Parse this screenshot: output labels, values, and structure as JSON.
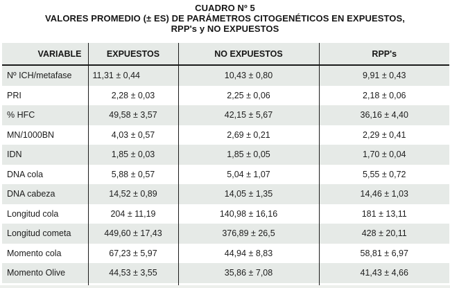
{
  "title": {
    "line1": "CUADRO Nº 5",
    "line2": "VALORES PROMEDIO (± ES) DE PARÁMETROS CITOGENÉTICOS EN EXPUESTOS,",
    "line3": "RPP's y NO EXPUESTOS"
  },
  "table": {
    "columns": [
      "VARIABLE",
      "EXPUESTOS",
      "NO EXPUESTOS",
      "RPP's"
    ],
    "rows": [
      [
        "Nº ICH/metafase",
        "11,31 ± 0,44",
        "10,43 ± 0,80",
        "9,91 ± 0,43"
      ],
      [
        "PRI",
        "2,28 ± 0,03",
        "2,25 ± 0,06",
        "2,18 ± 0,06"
      ],
      [
        "% HFC",
        "49,58 ± 3,57",
        "42,15 ± 5,67",
        "36,16 ± 4,40"
      ],
      [
        "MN/1000BN",
        "4,03 ± 0,57",
        "2,69 ± 0,21",
        "2,29 ± 0,41"
      ],
      [
        "IDN",
        "1,85 ± 0,03",
        "1,85 ± 0,05",
        "1,70 ± 0,04"
      ],
      [
        "DNA cola",
        "5,88 ± 0,57",
        "5,04 ± 1,07",
        "5,55 ± 0,72"
      ],
      [
        "DNA cabeza",
        "14,52 ± 0,89",
        "14,05 ± 1,35",
        "14,46 ± 1,03"
      ],
      [
        "Longitud cola",
        "204 ± 11,19",
        "140,98 ± 16,16",
        "181 ± 13,11"
      ],
      [
        "Longitud cometa",
        "449,60 ± 17,43",
        "376,89 ± 26,5",
        "428 ± 20,11"
      ],
      [
        "Momento cola",
        "67,23 ± 5,97",
        "44,94 ± 8,83",
        "58,81 ± 6,97"
      ],
      [
        "Momento Olive",
        "44,53 ± 3,55",
        "35,86 ± 7,08",
        "41,43 ± 4,66"
      ]
    ]
  },
  "colors": {
    "row_stripe": "#e6eae7",
    "border": "#1a1a1a",
    "text": "#1c1c1c",
    "background": "#ffffff"
  }
}
